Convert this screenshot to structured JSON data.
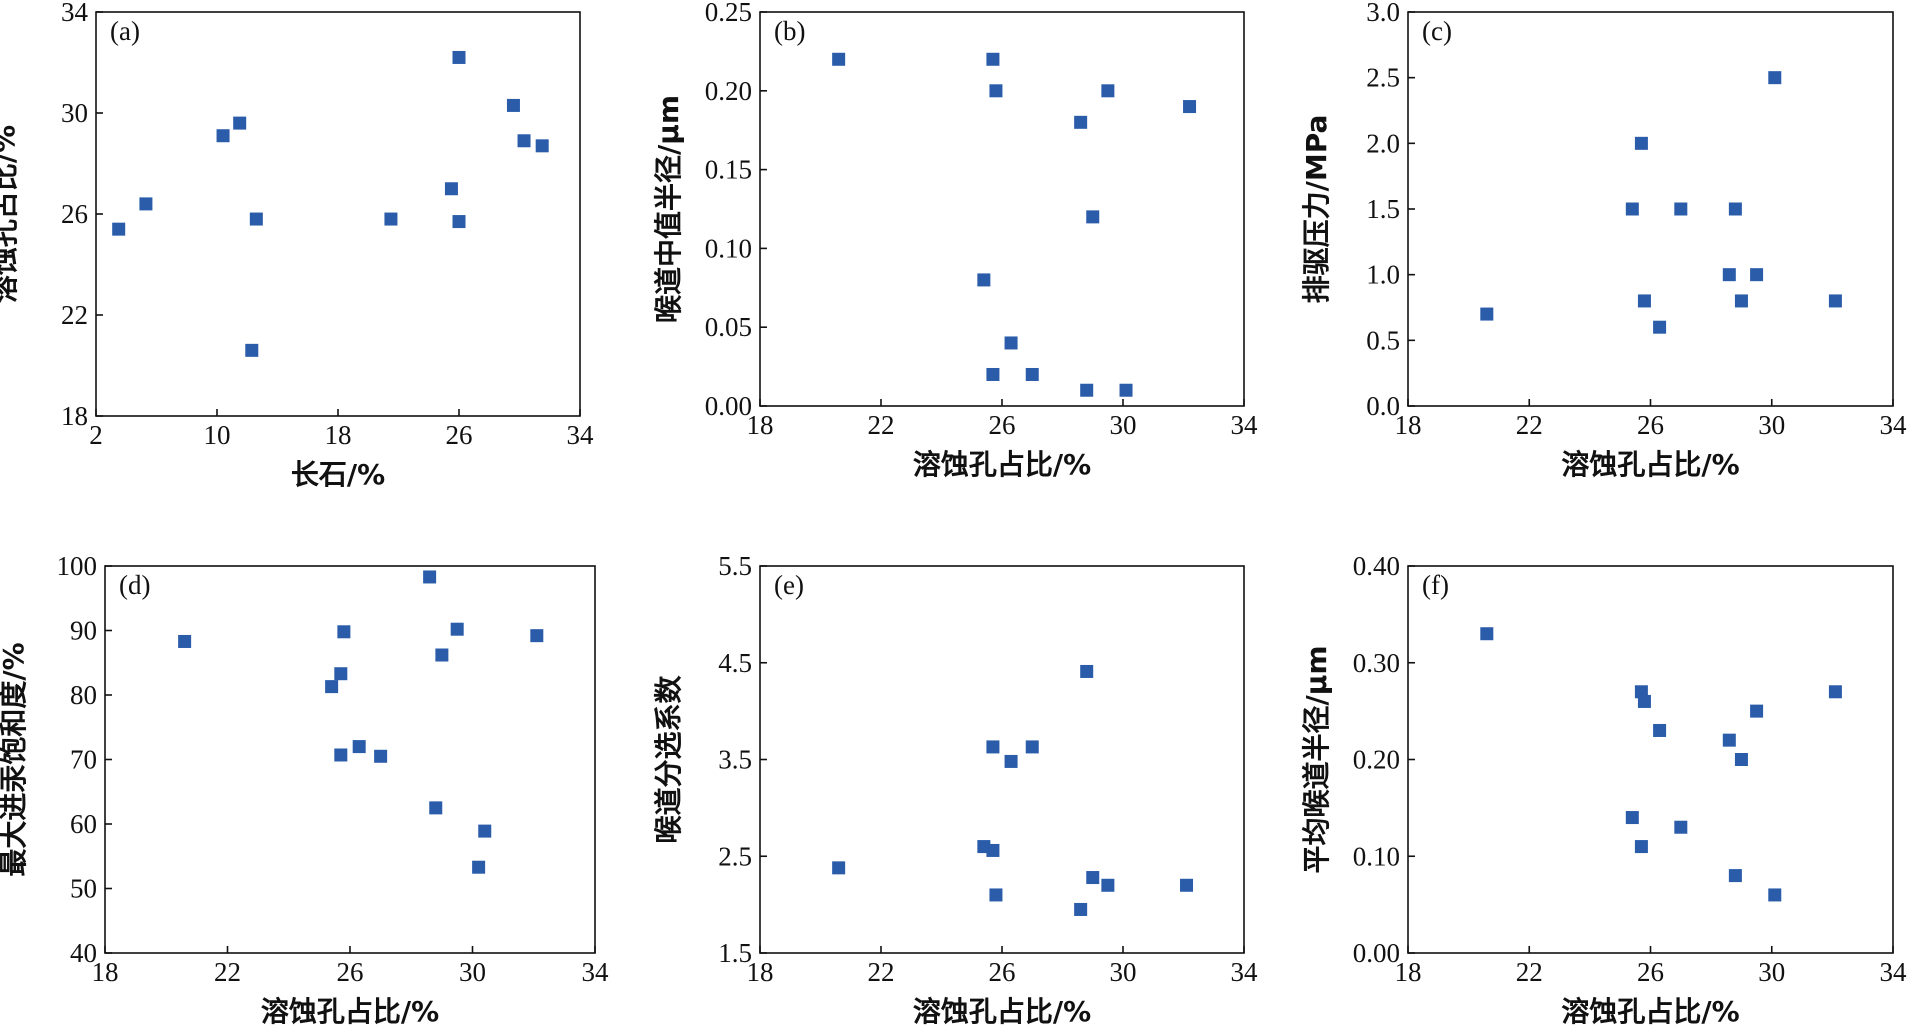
{
  "colors": {
    "marker": "#2a5caa",
    "axis": "#111111"
  },
  "chart_data": [
    {
      "type": "scatter",
      "panel_label": "(a)",
      "xlabel": "长石/%",
      "ylabel": "溶蚀孔占比/%",
      "xlim": [
        2,
        34
      ],
      "ylim": [
        18,
        34
      ],
      "xticks": [
        "2",
        "10",
        "18",
        "26",
        "34"
      ],
      "yticks": [
        "18",
        "22",
        "26",
        "30",
        "34"
      ],
      "points": [
        [
          3.5,
          25.4
        ],
        [
          5.3,
          26.4
        ],
        [
          10.4,
          29.1
        ],
        [
          11.5,
          29.6
        ],
        [
          12.6,
          25.8
        ],
        [
          12.3,
          20.6
        ],
        [
          21.5,
          25.8
        ],
        [
          25.5,
          27.0
        ],
        [
          26.0,
          25.7
        ],
        [
          26.0,
          32.2
        ],
        [
          29.6,
          30.3
        ],
        [
          30.3,
          28.9
        ],
        [
          31.5,
          28.7
        ]
      ],
      "grid": false
    },
    {
      "type": "scatter",
      "panel_label": "(b)",
      "xlabel": "溶蚀孔占比/%",
      "ylabel": "喉道中值半径/μm",
      "xlim": [
        18,
        34
      ],
      "ylim": [
        0,
        0.25
      ],
      "xticks": [
        "18",
        "22",
        "26",
        "30",
        "34"
      ],
      "yticks": [
        "0.00",
        "0.05",
        "0.10",
        "0.15",
        "0.20",
        "0.25"
      ],
      "points": [
        [
          20.6,
          0.22
        ],
        [
          25.7,
          0.22
        ],
        [
          25.8,
          0.2
        ],
        [
          29.5,
          0.2
        ],
        [
          28.6,
          0.18
        ],
        [
          32.2,
          0.19
        ],
        [
          29.0,
          0.12
        ],
        [
          25.4,
          0.08
        ],
        [
          26.3,
          0.04
        ],
        [
          25.7,
          0.02
        ],
        [
          27.0,
          0.02
        ],
        [
          28.8,
          0.01
        ],
        [
          30.1,
          0.01
        ]
      ],
      "grid": false
    },
    {
      "type": "scatter",
      "panel_label": "(c)",
      "xlabel": "溶蚀孔占比/%",
      "ylabel": "排驱压力/MPa",
      "xlim": [
        18,
        34
      ],
      "ylim": [
        0,
        3.0
      ],
      "xticks": [
        "18",
        "22",
        "26",
        "30",
        "34"
      ],
      "yticks": [
        "0.0",
        "0.5",
        "1.0",
        "1.5",
        "2.0",
        "2.5",
        "3.0"
      ],
      "points": [
        [
          20.6,
          0.7
        ],
        [
          25.4,
          1.5
        ],
        [
          25.7,
          2.0
        ],
        [
          25.8,
          0.8
        ],
        [
          26.3,
          0.6
        ],
        [
          27.0,
          1.5
        ],
        [
          28.6,
          1.0
        ],
        [
          28.8,
          1.5
        ],
        [
          29.0,
          0.8
        ],
        [
          29.5,
          1.0
        ],
        [
          30.1,
          2.5
        ],
        [
          32.1,
          0.8
        ]
      ],
      "grid": false
    },
    {
      "type": "scatter",
      "panel_label": "(d)",
      "xlabel": "溶蚀孔占比/%",
      "ylabel": "最大进汞饱和度/%",
      "xlim": [
        18,
        34
      ],
      "ylim": [
        40,
        100
      ],
      "xticks": [
        "18",
        "22",
        "26",
        "30",
        "34"
      ],
      "yticks": [
        "40",
        "50",
        "60",
        "70",
        "80",
        "90",
        "100"
      ],
      "points": [
        [
          20.6,
          88.3
        ],
        [
          25.4,
          81.3
        ],
        [
          25.7,
          83.3
        ],
        [
          25.7,
          70.7
        ],
        [
          25.8,
          89.8
        ],
        [
          26.3,
          72.0
        ],
        [
          27.0,
          70.5
        ],
        [
          28.6,
          98.3
        ],
        [
          28.8,
          62.5
        ],
        [
          29.0,
          86.2
        ],
        [
          29.5,
          90.2
        ],
        [
          30.2,
          53.3
        ],
        [
          30.4,
          58.9
        ],
        [
          32.1,
          89.2
        ]
      ],
      "grid": false
    },
    {
      "type": "scatter",
      "panel_label": "(e)",
      "xlabel": "溶蚀孔占比/%",
      "ylabel": "喉道分选系数",
      "xlim": [
        18,
        34
      ],
      "ylim": [
        1.5,
        5.5
      ],
      "xticks": [
        "18",
        "22",
        "26",
        "30",
        "34"
      ],
      "yticks": [
        "1.5",
        "2.5",
        "3.5",
        "4.5",
        "5.5"
      ],
      "points": [
        [
          20.6,
          2.38
        ],
        [
          25.4,
          2.6
        ],
        [
          25.7,
          2.56
        ],
        [
          25.7,
          3.63
        ],
        [
          25.8,
          2.1
        ],
        [
          26.3,
          3.48
        ],
        [
          27.0,
          3.63
        ],
        [
          28.6,
          1.95
        ],
        [
          28.8,
          4.41
        ],
        [
          29.0,
          2.28
        ],
        [
          29.5,
          2.2
        ],
        [
          32.1,
          2.2
        ]
      ],
      "grid": false
    },
    {
      "type": "scatter",
      "panel_label": "(f)",
      "xlabel": "溶蚀孔占比/%",
      "ylabel": "平均喉道半径/μm",
      "xlim": [
        18,
        34
      ],
      "ylim": [
        0,
        0.4
      ],
      "xticks": [
        "18",
        "22",
        "26",
        "30",
        "34"
      ],
      "yticks": [
        "0.00",
        "0.10",
        "0.20",
        "0.30",
        "0.40"
      ],
      "points": [
        [
          20.6,
          0.33
        ],
        [
          25.4,
          0.14
        ],
        [
          25.7,
          0.27
        ],
        [
          25.7,
          0.11
        ],
        [
          25.8,
          0.26
        ],
        [
          26.3,
          0.23
        ],
        [
          27.0,
          0.13
        ],
        [
          28.6,
          0.22
        ],
        [
          28.8,
          0.08
        ],
        [
          29.0,
          0.2
        ],
        [
          29.5,
          0.25
        ],
        [
          30.1,
          0.06
        ],
        [
          32.1,
          0.27
        ]
      ],
      "grid": false
    }
  ]
}
